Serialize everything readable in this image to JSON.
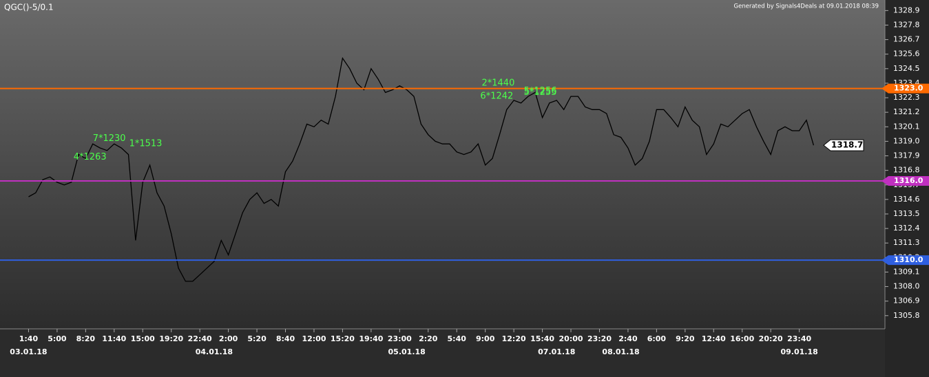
{
  "chart_data": {
    "type": "line",
    "title": "QGC()-5/0.1",
    "subtitle": "Generated by Signals4Deals at 09.01.2018 08:39",
    "xlim": [
      -4,
      120
    ],
    "ylim": [
      1304.8,
      1329.7
    ],
    "xticks": [
      {
        "value": 0,
        "label": "1:40"
      },
      {
        "value": 4,
        "label": "5:00"
      },
      {
        "value": 8,
        "label": "8:20"
      },
      {
        "value": 12,
        "label": "11:40"
      },
      {
        "value": 16,
        "label": "15:00"
      },
      {
        "value": 20,
        "label": "19:20"
      },
      {
        "value": 24,
        "label": "22:40"
      },
      {
        "value": 28,
        "label": "2:00"
      },
      {
        "value": 32,
        "label": "5:20"
      },
      {
        "value": 36,
        "label": "8:40"
      },
      {
        "value": 40,
        "label": "12:00"
      },
      {
        "value": 44,
        "label": "15:20"
      },
      {
        "value": 48,
        "label": "19:40"
      },
      {
        "value": 52,
        "label": "23:00"
      },
      {
        "value": 56,
        "label": "2:20"
      },
      {
        "value": 60,
        "label": "5:40"
      },
      {
        "value": 64,
        "label": "9:00"
      },
      {
        "value": 68,
        "label": "12:20"
      },
      {
        "value": 72,
        "label": "15:40"
      },
      {
        "value": 76,
        "label": "20:00"
      },
      {
        "value": 80,
        "label": "23:20"
      },
      {
        "value": 84,
        "label": "2:40"
      },
      {
        "value": 88,
        "label": "6:00"
      },
      {
        "value": 92,
        "label": "9:20"
      },
      {
        "value": 96,
        "label": "12:40"
      },
      {
        "value": 100,
        "label": "16:00"
      },
      {
        "value": 104,
        "label": "20:20"
      },
      {
        "value": 108,
        "label": "23:40"
      }
    ],
    "date_labels": [
      {
        "value": 0,
        "label": "03.01.18"
      },
      {
        "value": 26,
        "label": "04.01.18"
      },
      {
        "value": 53,
        "label": "05.01.18"
      },
      {
        "value": 74,
        "label": "07.01.18"
      },
      {
        "value": 83,
        "label": "08.01.18"
      },
      {
        "value": 108,
        "label": "09.01.18"
      }
    ],
    "yticks": [
      1328.9,
      1327.8,
      1326.7,
      1325.6,
      1324.5,
      1323.4,
      1322.3,
      1321.2,
      1320.1,
      {
        "value": 1319,
        "label": "1319.0"
      },
      1317.9,
      1316.8,
      1315.7,
      1314.6,
      1313.5,
      1312.4,
      1311.3,
      1310.2,
      1309.1,
      {
        "value": 1308,
        "label": "1308.0"
      },
      1306.9,
      1305.8
    ],
    "levels": [
      {
        "value": 1323,
        "label": "1323.0",
        "color": "#ff6a00"
      },
      {
        "value": 1316,
        "label": "1316.0",
        "color": "#c030c0"
      },
      {
        "value": 1310,
        "label": "1310.0",
        "color": "#2f5fe0"
      }
    ],
    "last_price": 1318.7,
    "series": [
      {
        "color": "#000000",
        "x": [
          0,
          1,
          2,
          3,
          4,
          5,
          6,
          7,
          8,
          9,
          10,
          11,
          12,
          13,
          14,
          15,
          16,
          17,
          18,
          19,
          20,
          21,
          22,
          23,
          24,
          25,
          26,
          27,
          28,
          29,
          30,
          31,
          32,
          33,
          34,
          35,
          36,
          37,
          38,
          39,
          40,
          41,
          42,
          43,
          44,
          45,
          46,
          47,
          48,
          49,
          50,
          51,
          52,
          53,
          54,
          55,
          56,
          57,
          58,
          59,
          60,
          61,
          62,
          63,
          64,
          65,
          66,
          67,
          68,
          69,
          70,
          71,
          72,
          73,
          74,
          75,
          76,
          77,
          78,
          79,
          80,
          81,
          82,
          83,
          84,
          85,
          86,
          87,
          88,
          89,
          90,
          91,
          92,
          93,
          94,
          95,
          96,
          97,
          98,
          99,
          100,
          101,
          102,
          103,
          104,
          105,
          106,
          107,
          108,
          109,
          110
        ],
        "values": [
          1314.8,
          1315.1,
          1316.1,
          1316.3,
          1315.9,
          1315.7,
          1315.9,
          1318.0,
          1317.7,
          1318.8,
          1318.5,
          1318.3,
          1318.8,
          1318.5,
          1318.0,
          1311.5,
          1315.9,
          1317.2,
          1315.1,
          1314.1,
          1312.0,
          1309.4,
          1308.4,
          1308.4,
          1308.9,
          1309.4,
          1309.9,
          1311.5,
          1310.4,
          1312.0,
          1313.6,
          1314.6,
          1315.1,
          1314.3,
          1314.6,
          1314.1,
          1316.7,
          1317.5,
          1318.8,
          1320.3,
          1320.1,
          1320.6,
          1320.3,
          1322.4,
          1325.3,
          1324.5,
          1323.4,
          1322.9,
          1324.5,
          1323.7,
          1322.7,
          1322.9,
          1323.2,
          1322.9,
          1322.4,
          1320.3,
          1319.5,
          1319.0,
          1318.8,
          1318.8,
          1318.2,
          1318.0,
          1318.2,
          1318.8,
          1317.2,
          1317.7,
          1319.5,
          1321.4,
          1322.1,
          1321.9,
          1322.4,
          1322.7,
          1320.8,
          1321.9,
          1322.1,
          1321.4,
          1322.4,
          1322.4,
          1321.6,
          1321.4,
          1321.4,
          1321.1,
          1319.5,
          1319.3,
          1318.5,
          1317.2,
          1317.7,
          1319.0,
          1321.4,
          1321.4,
          1320.8,
          1320.1,
          1321.6,
          1320.6,
          1320.1,
          1318.0,
          1318.8,
          1320.3,
          1320.1,
          1320.6,
          1321.1,
          1321.4,
          1320.1,
          1319.0,
          1318.0,
          1319.8,
          1320.1,
          1319.8,
          1319.8,
          1320.6,
          1318.7
        ]
      }
    ],
    "annotations": [
      {
        "text": "7*1230",
        "x": 9,
        "y": 1319.2
      },
      {
        "text": "4*1263",
        "x": 6.3,
        "y": 1317.8
      },
      {
        "text": "1*1513",
        "x": 14.1,
        "y": 1318.8
      },
      {
        "text": "2*1440",
        "x": 63.5,
        "y": 1323.4
      },
      {
        "text": "6*1242",
        "x": 63.3,
        "y": 1322.4
      },
      {
        "text": "5*1256",
        "x": 69.4,
        "y": 1322.8
      },
      {
        "text": "5*1255",
        "x": 69.4,
        "y": 1322.7
      }
    ]
  }
}
